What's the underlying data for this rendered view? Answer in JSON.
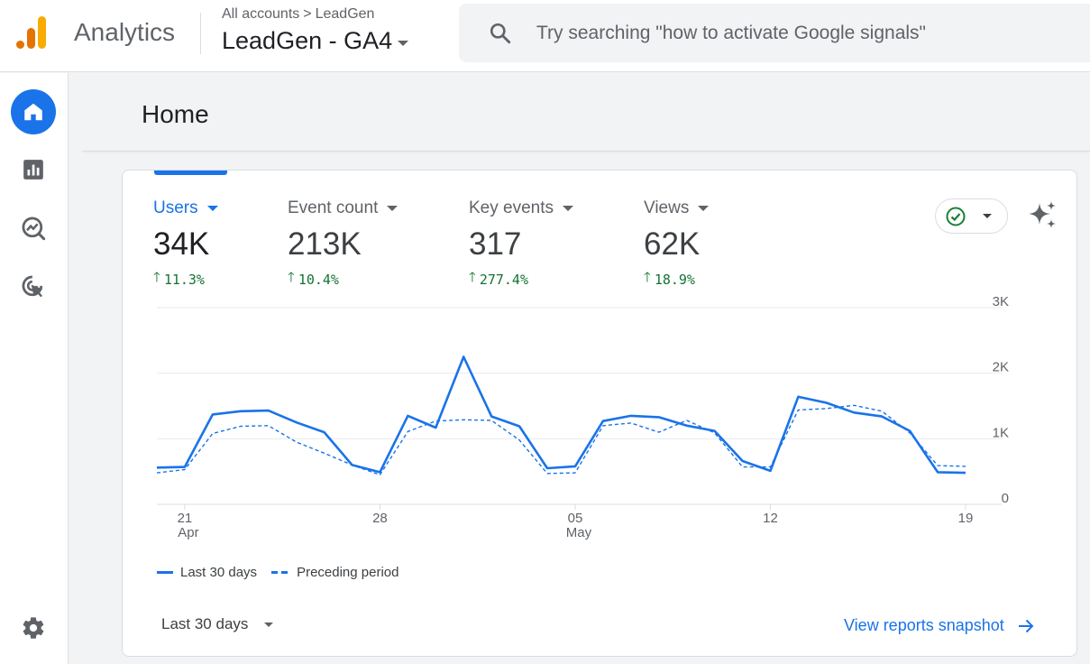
{
  "app": {
    "brand": "Analytics"
  },
  "breadcrumb": {
    "account": "All accounts",
    "separator": ">",
    "property": "LeadGen"
  },
  "property_selector": {
    "label": "LeadGen - GA4"
  },
  "search": {
    "placeholder": "Try searching \"how to activate Google signals\"",
    "icon": "search-icon"
  },
  "sidenav": {
    "items": [
      {
        "name": "home",
        "icon": "home-icon",
        "active": true
      },
      {
        "name": "reports",
        "icon": "bar-chart-icon",
        "active": false
      },
      {
        "name": "explore",
        "icon": "explore-icon",
        "active": false
      },
      {
        "name": "advertising",
        "icon": "advertising-icon",
        "active": false
      }
    ],
    "settings_icon": "gear-icon"
  },
  "page": {
    "title": "Home"
  },
  "metrics": [
    {
      "label": "Users",
      "value": "34K",
      "change": "11.3%",
      "active": true
    },
    {
      "label": "Event count",
      "value": "213K",
      "change": "10.4%",
      "active": false
    },
    {
      "label": "Key events",
      "value": "317",
      "change": "277.4%",
      "active": false
    },
    {
      "label": "Views",
      "value": "62K",
      "change": "18.9%",
      "active": false
    }
  ],
  "colors": {
    "accent": "#1a73e8",
    "positive": "#137333",
    "status_ok": "#188038"
  },
  "chart_data": {
    "type": "line",
    "y_axis_labels": [
      "3K",
      "2K",
      "1K",
      "0"
    ],
    "ylim": [
      0,
      3000
    ],
    "y_axis_position": "right",
    "grid": true,
    "x_tick_labels": [
      {
        "day": "21",
        "month": "Apr",
        "index": 1
      },
      {
        "day": "28",
        "month": "",
        "index": 8
      },
      {
        "day": "05",
        "month": "May",
        "index": 15
      },
      {
        "day": "12",
        "month": "",
        "index": 22
      },
      {
        "day": "19",
        "month": "",
        "index": 29
      }
    ],
    "x": [
      "Apr 20",
      "Apr 21",
      "Apr 22",
      "Apr 23",
      "Apr 24",
      "Apr 25",
      "Apr 26",
      "Apr 27",
      "Apr 28",
      "Apr 29",
      "Apr 30",
      "May 01",
      "May 02",
      "May 03",
      "May 04",
      "May 05",
      "May 06",
      "May 07",
      "May 08",
      "May 09",
      "May 10",
      "May 11",
      "May 12",
      "May 13",
      "May 14",
      "May 15",
      "May 16",
      "May 17",
      "May 18",
      "May 19"
    ],
    "series": [
      {
        "name": "Last 30 days",
        "style": "solid",
        "values": [
          560,
          570,
          1370,
          1420,
          1430,
          1250,
          1100,
          600,
          490,
          1350,
          1170,
          2250,
          1340,
          1190,
          550,
          580,
          1270,
          1350,
          1330,
          1200,
          1120,
          660,
          510,
          1640,
          1550,
          1400,
          1340,
          1120,
          490,
          480
        ]
      },
      {
        "name": "Preceding period",
        "style": "dashed",
        "values": [
          480,
          530,
          1080,
          1190,
          1200,
          950,
          780,
          600,
          450,
          1110,
          1270,
          1290,
          1280,
          980,
          470,
          480,
          1200,
          1240,
          1100,
          1280,
          1090,
          570,
          570,
          1440,
          1460,
          1510,
          1420,
          1090,
          590,
          580
        ]
      }
    ]
  },
  "legend": {
    "current": "Last 30 days",
    "previous": "Preceding period"
  },
  "footer": {
    "date_range": "Last 30 days",
    "snapshot_link": "View reports snapshot"
  }
}
